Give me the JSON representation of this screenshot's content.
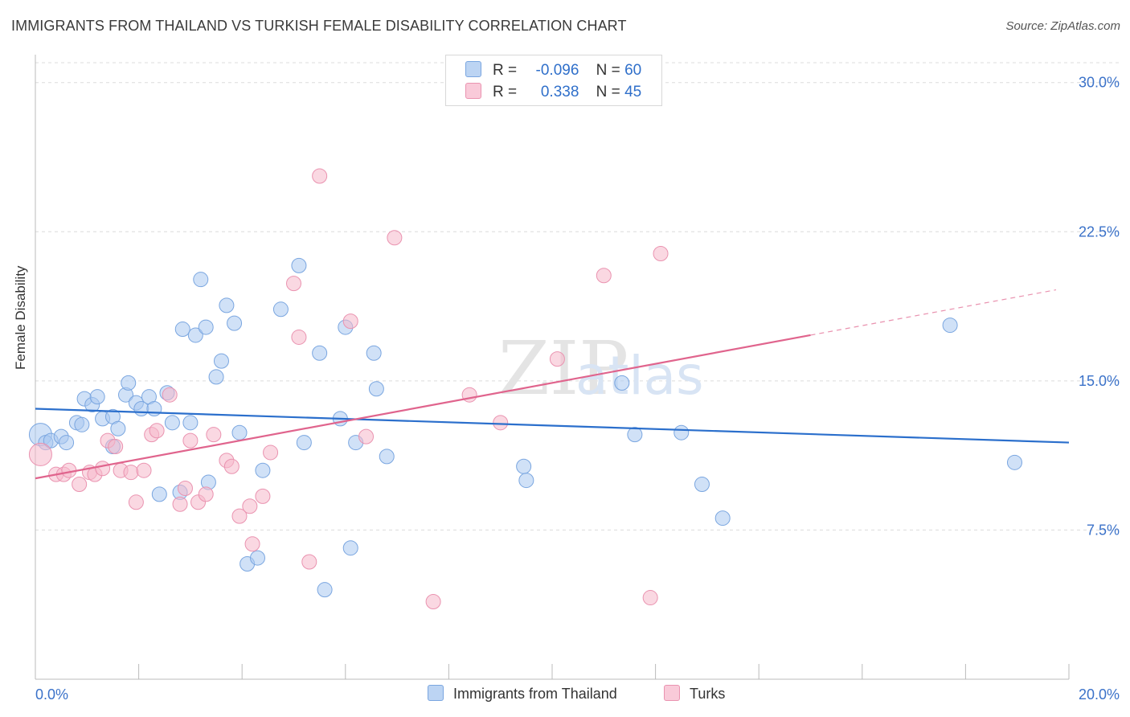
{
  "title": "IMMIGRANTS FROM THAILAND VS TURKISH FEMALE DISABILITY CORRELATION CHART",
  "source": "Source: ZipAtlas.com",
  "watermark": {
    "zip": "ZIP",
    "atlas": "atlas"
  },
  "legend": {
    "rows": [
      {
        "r_label": "R =",
        "r_value": "-0.096",
        "n_label": "N =",
        "n_value": "60"
      },
      {
        "r_label": "R =",
        "r_value": "0.338",
        "n_label": "N =",
        "n_value": "45"
      }
    ]
  },
  "colors": {
    "blue_fill": "#a9c8f0",
    "blue_stroke": "#7aa6e0",
    "blue_line": "#2b6fcc",
    "pink_fill": "#f6b8cb",
    "pink_stroke": "#ea93b0",
    "pink_line": "#e0648d",
    "axis_text": "#3b72c9",
    "grid": "#dcdcdc"
  },
  "chart_data": {
    "type": "scatter",
    "title": "IMMIGRANTS FROM THAILAND VS TURKISH FEMALE DISABILITY CORRELATION CHART",
    "xlabel": "",
    "ylabel": "Female Disability",
    "xlim": [
      0,
      20
    ],
    "ylim": [
      0,
      31
    ],
    "x_tick_labels": [
      "0.0%",
      "20.0%"
    ],
    "y_ticks": [
      7.5,
      15.0,
      22.5,
      30.0
    ],
    "y_tick_labels": [
      "7.5%",
      "15.0%",
      "22.5%",
      "30.0%"
    ],
    "series": [
      {
        "name": "Immigrants from Thailand",
        "color": "#a9c8f0",
        "trend": {
          "x0": 0,
          "y0": 13.6,
          "x1": 20,
          "y1": 11.9,
          "dashed_from": null
        },
        "points": [
          [
            0.1,
            12.3,
            20
          ],
          [
            0.2,
            11.9,
            10
          ],
          [
            0.3,
            12.0,
            10
          ],
          [
            0.5,
            12.2,
            10
          ],
          [
            0.6,
            11.9,
            10
          ],
          [
            0.8,
            12.9,
            10
          ],
          [
            0.9,
            12.8,
            10
          ],
          [
            0.95,
            14.1,
            10
          ],
          [
            1.1,
            13.8,
            10
          ],
          [
            1.2,
            14.2,
            10
          ],
          [
            1.3,
            13.1,
            10
          ],
          [
            1.5,
            13.2,
            10
          ],
          [
            1.5,
            11.7,
            10
          ],
          [
            1.6,
            12.6,
            10
          ],
          [
            1.75,
            14.3,
            10
          ],
          [
            1.8,
            14.9,
            10
          ],
          [
            1.95,
            13.9,
            10
          ],
          [
            2.05,
            13.6,
            10
          ],
          [
            2.2,
            14.2,
            10
          ],
          [
            2.3,
            13.6,
            10
          ],
          [
            2.4,
            9.3,
            10
          ],
          [
            2.55,
            14.4,
            10
          ],
          [
            2.65,
            12.9,
            10
          ],
          [
            2.8,
            9.4,
            10
          ],
          [
            2.85,
            17.6,
            10
          ],
          [
            3.0,
            12.9,
            10
          ],
          [
            3.1,
            17.3,
            10
          ],
          [
            3.2,
            20.1,
            10
          ],
          [
            3.3,
            17.7,
            10
          ],
          [
            3.35,
            9.9,
            10
          ],
          [
            3.5,
            15.2,
            10
          ],
          [
            3.6,
            16.0,
            10
          ],
          [
            3.7,
            18.8,
            10
          ],
          [
            3.85,
            17.9,
            10
          ],
          [
            3.95,
            12.4,
            10
          ],
          [
            4.1,
            5.8,
            10
          ],
          [
            4.3,
            6.1,
            10
          ],
          [
            4.4,
            10.5,
            10
          ],
          [
            4.75,
            18.6,
            10
          ],
          [
            5.1,
            20.8,
            10
          ],
          [
            5.2,
            11.9,
            10
          ],
          [
            5.5,
            16.4,
            10
          ],
          [
            5.6,
            4.5,
            10
          ],
          [
            5.9,
            13.1,
            10
          ],
          [
            6.0,
            17.7,
            10
          ],
          [
            6.1,
            6.6,
            10
          ],
          [
            6.2,
            11.9,
            10
          ],
          [
            6.55,
            16.4,
            10
          ],
          [
            6.6,
            14.6,
            10
          ],
          [
            6.8,
            11.2,
            10
          ],
          [
            9.45,
            10.7,
            10
          ],
          [
            9.5,
            10.0,
            10
          ],
          [
            11.35,
            14.9,
            10
          ],
          [
            11.6,
            12.3,
            10
          ],
          [
            12.5,
            12.4,
            10
          ],
          [
            12.9,
            9.8,
            10
          ],
          [
            13.3,
            8.1,
            10
          ],
          [
            17.7,
            17.8,
            10
          ],
          [
            18.95,
            10.9,
            10
          ]
        ]
      },
      {
        "name": "Turks",
        "color": "#f6b8cb",
        "trend": {
          "x0": 0,
          "y0": 10.1,
          "x1": 20,
          "y1": 19.7,
          "dashed_from": 15.0
        },
        "points": [
          [
            0.1,
            11.3,
            12
          ],
          [
            0.4,
            10.3,
            10
          ],
          [
            0.55,
            10.3,
            10
          ],
          [
            0.65,
            10.5,
            10
          ],
          [
            0.85,
            9.8,
            10
          ],
          [
            1.05,
            10.4,
            10
          ],
          [
            1.15,
            10.3,
            10
          ],
          [
            1.3,
            10.6,
            10
          ],
          [
            1.4,
            12.0,
            10
          ],
          [
            1.55,
            11.7,
            10
          ],
          [
            1.65,
            10.5,
            10
          ],
          [
            1.85,
            10.4,
            10
          ],
          [
            1.95,
            8.9,
            10
          ],
          [
            2.1,
            10.5,
            10
          ],
          [
            2.25,
            12.3,
            10
          ],
          [
            2.35,
            12.5,
            10
          ],
          [
            2.6,
            14.3,
            10
          ],
          [
            2.8,
            8.8,
            10
          ],
          [
            2.9,
            9.6,
            10
          ],
          [
            3.0,
            12.0,
            10
          ],
          [
            3.15,
            8.9,
            10
          ],
          [
            3.3,
            9.3,
            10
          ],
          [
            3.45,
            12.3,
            10
          ],
          [
            3.7,
            11.0,
            10
          ],
          [
            3.8,
            10.7,
            10
          ],
          [
            3.95,
            8.2,
            10
          ],
          [
            4.15,
            8.7,
            10
          ],
          [
            4.2,
            6.8,
            10
          ],
          [
            4.4,
            9.2,
            10
          ],
          [
            4.55,
            11.4,
            10
          ],
          [
            5.0,
            19.9,
            10
          ],
          [
            5.1,
            17.2,
            10
          ],
          [
            5.3,
            5.9,
            10
          ],
          [
            5.5,
            25.3,
            10
          ],
          [
            6.1,
            18.0,
            10
          ],
          [
            6.4,
            12.2,
            10
          ],
          [
            6.95,
            22.2,
            10
          ],
          [
            7.7,
            3.9,
            10
          ],
          [
            8.4,
            14.3,
            10
          ],
          [
            9.0,
            12.9,
            10
          ],
          [
            10.1,
            16.1,
            10
          ],
          [
            11.0,
            20.3,
            10
          ],
          [
            11.9,
            4.1,
            10
          ],
          [
            12.1,
            21.4,
            10
          ]
        ]
      }
    ]
  },
  "bottom_legend": [
    {
      "label": "Immigrants from Thailand"
    },
    {
      "label": "Turks"
    }
  ]
}
